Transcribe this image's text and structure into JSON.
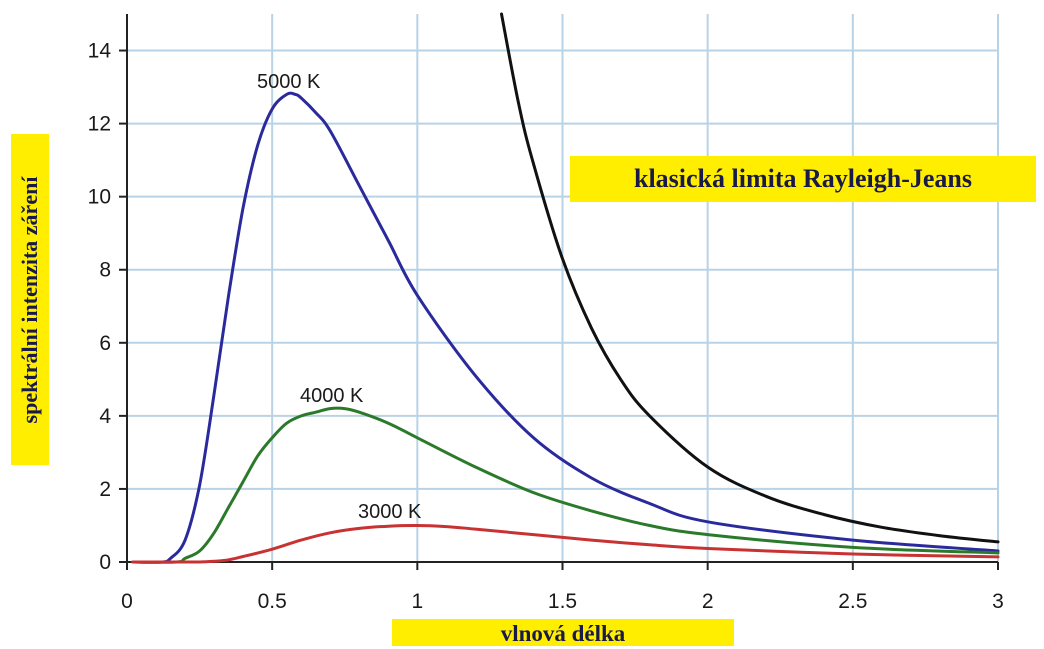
{
  "chart_data": {
    "type": "line",
    "xlabel": "vlnová délka",
    "ylabel": "spektrální intenzita záření",
    "xlim": [
      0,
      3
    ],
    "ylim": [
      0,
      15
    ],
    "x_ticks": [
      "0",
      "0.5",
      "1",
      "1.5",
      "2",
      "2.5",
      "3"
    ],
    "y_ticks": [
      "0",
      "2",
      "4",
      "6",
      "8",
      "10",
      "12",
      "14"
    ],
    "grid": true,
    "series": [
      {
        "name": "5000 K",
        "color": "#2a2a9c",
        "x": [
          0.15,
          0.2,
          0.25,
          0.3,
          0.35,
          0.4,
          0.45,
          0.5,
          0.55,
          0.58,
          0.6,
          0.65,
          0.7,
          0.8,
          0.9,
          1.0,
          1.2,
          1.4,
          1.6,
          1.8,
          2.0,
          2.5,
          3.0
        ],
        "y": [
          0.1,
          0.6,
          2.1,
          4.6,
          7.3,
          9.7,
          11.4,
          12.4,
          12.8,
          12.8,
          12.7,
          12.3,
          11.8,
          10.3,
          8.8,
          7.3,
          5.1,
          3.4,
          2.3,
          1.6,
          1.1,
          0.6,
          0.3
        ]
      },
      {
        "name": "4000 K",
        "color": "#2b7a2b",
        "x": [
          0.2,
          0.25,
          0.3,
          0.35,
          0.4,
          0.45,
          0.5,
          0.55,
          0.6,
          0.65,
          0.7,
          0.75,
          0.8,
          0.9,
          1.0,
          1.2,
          1.4,
          1.6,
          1.8,
          2.0,
          2.5,
          3.0
        ],
        "y": [
          0.1,
          0.3,
          0.8,
          1.5,
          2.2,
          2.9,
          3.4,
          3.8,
          4.0,
          4.1,
          4.2,
          4.2,
          4.1,
          3.8,
          3.4,
          2.6,
          1.9,
          1.4,
          1.0,
          0.75,
          0.4,
          0.25
        ]
      },
      {
        "name": "3000 K",
        "color": "#c83232",
        "x": [
          0.25,
          0.3,
          0.35,
          0.4,
          0.5,
          0.6,
          0.7,
          0.8,
          0.9,
          1.0,
          1.1,
          1.2,
          1.4,
          1.6,
          1.8,
          2.0,
          2.5,
          3.0
        ],
        "y": [
          0.0,
          0.02,
          0.06,
          0.15,
          0.35,
          0.6,
          0.8,
          0.92,
          0.98,
          1.0,
          0.97,
          0.9,
          0.75,
          0.6,
          0.47,
          0.37,
          0.22,
          0.14
        ]
      },
      {
        "name": "klasická limita Rayleigh-Jeans",
        "color": "#111111",
        "x": [
          1.29,
          1.35,
          1.4,
          1.5,
          1.6,
          1.7,
          1.8,
          2.0,
          2.2,
          2.4,
          2.6,
          2.8,
          3.0
        ],
        "y": [
          15.0,
          12.5,
          10.9,
          8.3,
          6.4,
          5.0,
          4.0,
          2.6,
          1.8,
          1.3,
          0.95,
          0.72,
          0.55
        ]
      }
    ]
  },
  "curve_labels": [
    "5000 K",
    "4000 K",
    "3000 K"
  ]
}
